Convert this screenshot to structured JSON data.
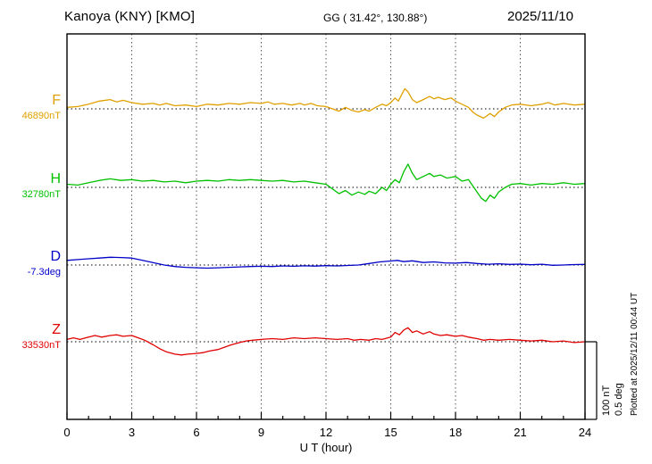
{
  "header": {
    "station_title": "Kanoya (KNY)  [KMO]",
    "coords": "GG ( 31.42°, 130.88°)",
    "date": "2025/11/10"
  },
  "axis": {
    "xlabel": "U T (hour)",
    "x_min": 0,
    "x_max": 24,
    "x_ticks": [
      0,
      3,
      6,
      9,
      12,
      15,
      18,
      21,
      24
    ]
  },
  "scale_bar": {
    "line1": "100 nT",
    "line2": "0.5 deg"
  },
  "footer_note": "Plotted at 2025/12/11 00:44 UT",
  "chart_data": {
    "type": "line",
    "title": "Kanoya (KNY) [KMO] magnetogram 2025/11/10",
    "xlabel": "U T (hour)",
    "x_range": [
      0,
      24
    ],
    "grid": "dotted-vertical-every-3h",
    "scale": {
      "nT_per_division": 100,
      "deg_per_division": 0.5
    },
    "series": [
      {
        "name": "F",
        "color": "#e0a000",
        "unit": "nT",
        "baseline_label": "46890nT",
        "baseline_value": 46890,
        "points": [
          [
            0,
            2
          ],
          [
            0.5,
            3
          ],
          [
            1,
            6
          ],
          [
            1.5,
            10
          ],
          [
            2,
            12
          ],
          [
            2.3,
            9
          ],
          [
            2.6,
            11
          ],
          [
            3,
            8
          ],
          [
            3.5,
            6
          ],
          [
            4,
            7
          ],
          [
            4.3,
            5
          ],
          [
            4.6,
            7
          ],
          [
            5,
            4
          ],
          [
            5.5,
            5
          ],
          [
            6,
            3
          ],
          [
            6.5,
            6
          ],
          [
            7,
            5
          ],
          [
            7.5,
            7
          ],
          [
            8,
            6
          ],
          [
            8.5,
            8
          ],
          [
            9,
            7
          ],
          [
            9.3,
            9
          ],
          [
            9.6,
            6
          ],
          [
            10,
            7
          ],
          [
            10.4,
            5
          ],
          [
            10.8,
            7
          ],
          [
            11,
            5
          ],
          [
            11.3,
            7
          ],
          [
            11.6,
            4
          ],
          [
            12,
            3
          ],
          [
            12.3,
            0
          ],
          [
            12.6,
            -3
          ],
          [
            12.9,
            2
          ],
          [
            13.2,
            -2
          ],
          [
            13.5,
            -4
          ],
          [
            13.8,
            -1
          ],
          [
            14,
            -3
          ],
          [
            14.3,
            2
          ],
          [
            14.6,
            6
          ],
          [
            14.8,
            4
          ],
          [
            15,
            8
          ],
          [
            15.2,
            14
          ],
          [
            15.35,
            10
          ],
          [
            15.5,
            18
          ],
          [
            15.65,
            26
          ],
          [
            15.8,
            22
          ],
          [
            16,
            12
          ],
          [
            16.2,
            8
          ],
          [
            16.5,
            12
          ],
          [
            16.8,
            16
          ],
          [
            17,
            13
          ],
          [
            17.2,
            15
          ],
          [
            17.5,
            12
          ],
          [
            17.8,
            14
          ],
          [
            18,
            10
          ],
          [
            18.3,
            6
          ],
          [
            18.6,
            2
          ],
          [
            18.8,
            -4
          ],
          [
            19,
            -8
          ],
          [
            19.3,
            -12
          ],
          [
            19.6,
            -6
          ],
          [
            19.8,
            -10
          ],
          [
            20,
            -4
          ],
          [
            20.3,
            2
          ],
          [
            20.6,
            5
          ],
          [
            21,
            6
          ],
          [
            21.5,
            4
          ],
          [
            22,
            6
          ],
          [
            22.3,
            8
          ],
          [
            22.6,
            5
          ],
          [
            23,
            7
          ],
          [
            23.5,
            5
          ],
          [
            24,
            6
          ]
        ]
      },
      {
        "name": "H",
        "color": "#00c000",
        "unit": "nT",
        "baseline_label": "32780nT",
        "baseline_value": 32780,
        "points": [
          [
            0,
            4
          ],
          [
            0.5,
            3
          ],
          [
            1,
            6
          ],
          [
            1.5,
            9
          ],
          [
            2,
            11
          ],
          [
            2.5,
            9
          ],
          [
            3,
            10
          ],
          [
            3.5,
            8
          ],
          [
            4,
            9
          ],
          [
            4.5,
            7
          ],
          [
            5,
            8
          ],
          [
            5.5,
            6
          ],
          [
            6,
            8
          ],
          [
            6.5,
            9
          ],
          [
            7,
            8
          ],
          [
            7.5,
            10
          ],
          [
            8,
            9
          ],
          [
            8.5,
            10
          ],
          [
            9,
            9
          ],
          [
            9.5,
            8
          ],
          [
            10,
            9
          ],
          [
            10.5,
            7
          ],
          [
            11,
            8
          ],
          [
            11.5,
            6
          ],
          [
            12,
            4
          ],
          [
            12.3,
            -2
          ],
          [
            12.6,
            -8
          ],
          [
            12.9,
            -4
          ],
          [
            13.2,
            -10
          ],
          [
            13.5,
            -6
          ],
          [
            13.8,
            -9
          ],
          [
            14,
            -5
          ],
          [
            14.3,
            -8
          ],
          [
            14.6,
            0
          ],
          [
            14.8,
            -4
          ],
          [
            15,
            4
          ],
          [
            15.2,
            10
          ],
          [
            15.4,
            6
          ],
          [
            15.6,
            20
          ],
          [
            15.8,
            30
          ],
          [
            16,
            18
          ],
          [
            16.2,
            10
          ],
          [
            16.5,
            14
          ],
          [
            16.8,
            18
          ],
          [
            17,
            14
          ],
          [
            17.3,
            16
          ],
          [
            17.6,
            12
          ],
          [
            18,
            14
          ],
          [
            18.3,
            8
          ],
          [
            18.6,
            10
          ],
          [
            18.8,
            2
          ],
          [
            19,
            -6
          ],
          [
            19.2,
            -14
          ],
          [
            19.4,
            -18
          ],
          [
            19.6,
            -10
          ],
          [
            19.8,
            -14
          ],
          [
            20,
            -6
          ],
          [
            20.3,
            0
          ],
          [
            20.6,
            4
          ],
          [
            21,
            5
          ],
          [
            21.5,
            3
          ],
          [
            22,
            5
          ],
          [
            22.5,
            4
          ],
          [
            23,
            6
          ],
          [
            23.5,
            4
          ],
          [
            24,
            5
          ]
        ]
      },
      {
        "name": "D",
        "color": "#0000c8",
        "unit": "deg",
        "baseline_label": "-7.3deg",
        "baseline_value": -7.3,
        "points": [
          [
            0,
            0.03
          ],
          [
            0.5,
            0.035
          ],
          [
            1,
            0.04
          ],
          [
            1.5,
            0.045
          ],
          [
            2,
            0.05
          ],
          [
            2.5,
            0.048
          ],
          [
            3,
            0.045
          ],
          [
            3.5,
            0.03
          ],
          [
            4,
            0.015
          ],
          [
            4.5,
            0
          ],
          [
            5,
            -0.01
          ],
          [
            5.5,
            -0.015
          ],
          [
            6,
            -0.018
          ],
          [
            6.5,
            -0.02
          ],
          [
            7,
            -0.018
          ],
          [
            7.5,
            -0.015
          ],
          [
            8,
            -0.012
          ],
          [
            8.5,
            -0.01
          ],
          [
            9,
            -0.008
          ],
          [
            9.5,
            -0.01
          ],
          [
            10,
            -0.006
          ],
          [
            10.5,
            -0.008
          ],
          [
            11,
            -0.005
          ],
          [
            11.5,
            -0.007
          ],
          [
            12,
            -0.004
          ],
          [
            12.5,
            -0.006
          ],
          [
            13,
            -0.003
          ],
          [
            13.5,
            0
          ],
          [
            14,
            0.01
          ],
          [
            14.5,
            0.02
          ],
          [
            15,
            0.026
          ],
          [
            15.3,
            0.03
          ],
          [
            15.6,
            0.022
          ],
          [
            16,
            0.027
          ],
          [
            16.5,
            0.016
          ],
          [
            17,
            0.02
          ],
          [
            17.5,
            0.014
          ],
          [
            18,
            0.012
          ],
          [
            18.5,
            0.016
          ],
          [
            19,
            0.01
          ],
          [
            19.5,
            0.005
          ],
          [
            20,
            0.008
          ],
          [
            20.5,
            0.004
          ],
          [
            21,
            0.006
          ],
          [
            21.5,
            0.002
          ],
          [
            22,
            0.005
          ],
          [
            22.5,
            -0.002
          ],
          [
            23,
            0
          ],
          [
            23.5,
            0.003
          ],
          [
            24,
            0.004
          ]
        ]
      },
      {
        "name": "Z",
        "color": "#e00000",
        "unit": "nT",
        "baseline_label": "33530nT",
        "baseline_value": 33530,
        "points": [
          [
            0,
            3
          ],
          [
            0.3,
            5
          ],
          [
            0.6,
            3
          ],
          [
            1,
            6
          ],
          [
            1.3,
            8
          ],
          [
            1.6,
            6
          ],
          [
            2,
            8
          ],
          [
            2.3,
            9
          ],
          [
            2.6,
            7
          ],
          [
            3,
            8
          ],
          [
            3.3,
            5
          ],
          [
            3.6,
            2
          ],
          [
            4,
            -4
          ],
          [
            4.3,
            -9
          ],
          [
            4.6,
            -13
          ],
          [
            5,
            -16
          ],
          [
            5.3,
            -17
          ],
          [
            5.6,
            -16
          ],
          [
            6,
            -15
          ],
          [
            6.3,
            -14
          ],
          [
            6.6,
            -12
          ],
          [
            7,
            -10
          ],
          [
            7.3,
            -7
          ],
          [
            7.6,
            -4
          ],
          [
            8,
            -1
          ],
          [
            8.3,
            1
          ],
          [
            8.6,
            2
          ],
          [
            9,
            3
          ],
          [
            9.5,
            4
          ],
          [
            10,
            3
          ],
          [
            10.5,
            5
          ],
          [
            11,
            4
          ],
          [
            11.5,
            5
          ],
          [
            12,
            4
          ],
          [
            12.5,
            3
          ],
          [
            13,
            4
          ],
          [
            13.3,
            2
          ],
          [
            13.6,
            3
          ],
          [
            14,
            2
          ],
          [
            14.3,
            4
          ],
          [
            14.6,
            3
          ],
          [
            15,
            6
          ],
          [
            15.2,
            12
          ],
          [
            15.4,
            9
          ],
          [
            15.6,
            15
          ],
          [
            15.8,
            18
          ],
          [
            16,
            12
          ],
          [
            16.2,
            14
          ],
          [
            16.5,
            10
          ],
          [
            16.8,
            13
          ],
          [
            17,
            10
          ],
          [
            17.3,
            8
          ],
          [
            17.6,
            9
          ],
          [
            18,
            7
          ],
          [
            18.3,
            8
          ],
          [
            18.6,
            6
          ],
          [
            19,
            4
          ],
          [
            19.3,
            2
          ],
          [
            19.6,
            3
          ],
          [
            20,
            2
          ],
          [
            20.5,
            3
          ],
          [
            21,
            2
          ],
          [
            21.5,
            1
          ],
          [
            22,
            2
          ],
          [
            22.5,
            0
          ],
          [
            23,
            1
          ],
          [
            23.5,
            -1
          ],
          [
            24,
            0
          ]
        ]
      }
    ]
  }
}
